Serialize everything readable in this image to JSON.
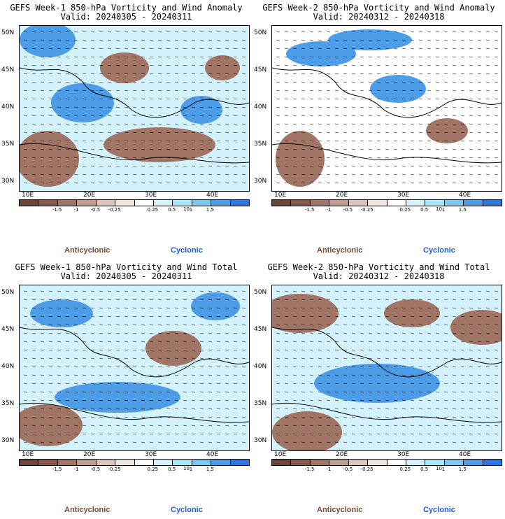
{
  "panels": [
    {
      "title": "GEFS Week-1 850-hPa Vorticity and Wind Anomaly",
      "valid": "Valid: 20240305 - 20240311"
    },
    {
      "title": "GEFS Week-2 850-hPa Vorticity and Wind Anomaly",
      "valid": "Valid: 20240312 - 20240318"
    },
    {
      "title": "GEFS Week-1 850-hPa Vorticity and Wind Total",
      "valid": "Valid: 20240305 - 20240311"
    },
    {
      "title": "GEFS Week-2 850-hPa Vorticity and Wind Total",
      "valid": "Valid: 20240312 - 20240318"
    }
  ],
  "lat_labels": [
    "50N",
    "45N",
    "40N",
    "35N",
    "30N"
  ],
  "lon_labels": [
    "10E",
    "20E",
    "30E",
    "40E"
  ],
  "colorbar": {
    "ticks": [
      "-1.5",
      "-1",
      "-0.5",
      "-0.25",
      "0.25",
      "0.5",
      "1",
      "1.5"
    ],
    "unit": "10",
    "colors": [
      "#6b4535",
      "#85584a",
      "#a07565",
      "#bf9d8f",
      "#dcc4b9",
      "#f0e4de",
      "#ffffff",
      "#d4f2fb",
      "#a6e7f8",
      "#78c8f2",
      "#4d9ce8",
      "#2b77e0"
    ]
  },
  "legend": {
    "anticyclonic": "Anticyclonic",
    "cyclonic": "Cyclonic"
  },
  "colors": {
    "anticyclonic": "#7a4a3a",
    "cyclonic": "#1f5fd6"
  }
}
